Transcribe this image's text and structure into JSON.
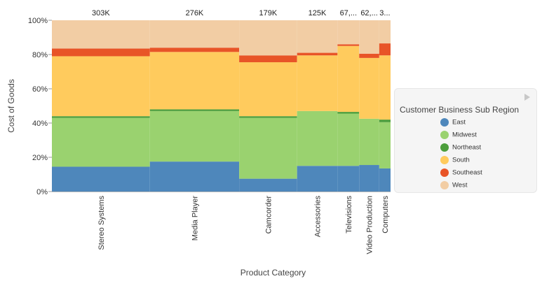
{
  "chart_data": {
    "type": "area",
    "subtype": "marimekko-100pct-stacked",
    "xlabel": "Product Category",
    "ylabel": "Cost of Goods",
    "ylim": [
      0,
      100
    ],
    "y_ticks": [
      "0%",
      "20%",
      "40%",
      "60%",
      "80%",
      "100%"
    ],
    "categories": [
      "Stereo Systems",
      "Media Player",
      "Camcorder",
      "Accessories",
      "Televisions",
      "Video Production",
      "Computers"
    ],
    "totals": [
      303,
      276,
      179,
      125,
      67,
      62,
      35
    ],
    "total_labels": [
      "303K",
      "276K",
      "179K",
      "125K",
      "67,...",
      "62,...",
      "3..."
    ],
    "series": [
      {
        "name": "East",
        "color": "#4e87bb",
        "values": [
          14.5,
          17.5,
          7.5,
          15.0,
          15.0,
          15.5,
          13.5
        ]
      },
      {
        "name": "Midwest",
        "color": "#9ad26f",
        "values": [
          28.5,
          29.5,
          35.5,
          32.0,
          30.5,
          27.0,
          27.0
        ]
      },
      {
        "name": "Northeast",
        "color": "#4c9e3c",
        "values": [
          1.0,
          1.0,
          1.0,
          0.0,
          1.0,
          0.0,
          1.5
        ]
      },
      {
        "name": "South",
        "color": "#ffcb5d",
        "values": [
          35.0,
          33.5,
          31.5,
          32.5,
          38.5,
          35.5,
          37.5
        ]
      },
      {
        "name": "Southeast",
        "color": "#e85427",
        "values": [
          4.5,
          2.5,
          4.0,
          1.5,
          1.0,
          2.5,
          7.0
        ]
      },
      {
        "name": "West",
        "color": "#f2cda4",
        "values": [
          16.5,
          16.0,
          20.5,
          19.0,
          14.0,
          19.5,
          13.5
        ]
      }
    ],
    "grid": false,
    "legend_position": "right"
  },
  "legend": {
    "title": "Customer Business Sub Region"
  }
}
